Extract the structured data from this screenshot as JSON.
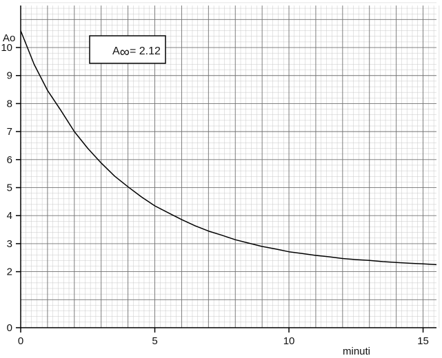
{
  "chart_data": {
    "type": "line",
    "title": "",
    "xlabel": "minuti",
    "ylabel": "Ao",
    "xlim": [
      0,
      15.5
    ],
    "ylim": [
      0,
      11.5
    ],
    "grid": true,
    "x_ticks": [
      0,
      5,
      10,
      15
    ],
    "y_ticks": [
      0,
      2,
      3,
      4,
      5,
      6,
      7,
      8,
      9,
      10
    ],
    "annotation": {
      "prefix": "A",
      "symbol": "∞",
      "text": "= 2.12",
      "position": "top-left"
    },
    "asymptote": 2.12,
    "series": [
      {
        "x": [
          0,
          0.5,
          1,
          1.5,
          2,
          2.5,
          3,
          3.5,
          4,
          4.5,
          5,
          5.5,
          6,
          6.5,
          7,
          7.5,
          8,
          8.5,
          9,
          9.5,
          10,
          10.5,
          11,
          11.5,
          12,
          12.5,
          13,
          13.5,
          14,
          14.5,
          15,
          15.5
        ],
        "y": [
          10.6,
          9.4,
          8.47,
          7.75,
          7.0,
          6.4,
          5.88,
          5.41,
          5.03,
          4.67,
          4.35,
          4.1,
          3.86,
          3.64,
          3.45,
          3.3,
          3.14,
          3.02,
          2.9,
          2.81,
          2.71,
          2.65,
          2.58,
          2.53,
          2.47,
          2.43,
          2.4,
          2.36,
          2.33,
          2.3,
          2.28,
          2.25
        ],
        "color": "#000000"
      }
    ],
    "colors": {
      "grid_minor": "#c8c8c8",
      "grid_major": "#707070",
      "line": "#000000"
    }
  }
}
